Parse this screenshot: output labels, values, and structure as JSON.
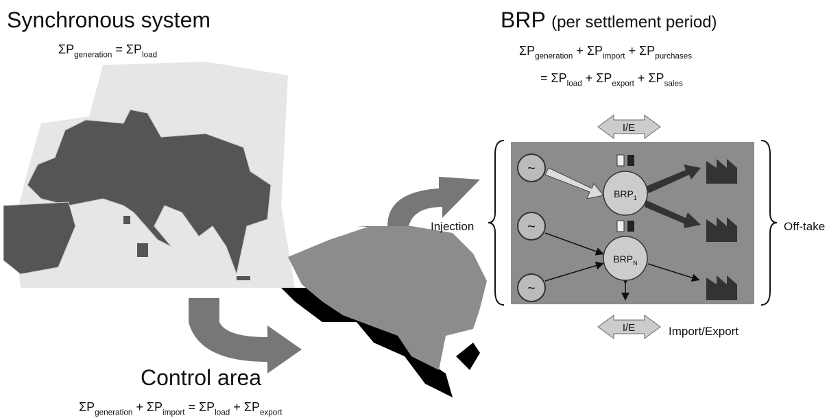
{
  "synchronous": {
    "title": "Synchronous system",
    "equation": [
      [
        "ΣP",
        "generation"
      ],
      [
        " = ΣP",
        "load"
      ]
    ]
  },
  "brp": {
    "title": "BRP",
    "subtitle": "(per settlement period)",
    "equation_line1": [
      [
        "ΣP",
        "generation"
      ],
      [
        " + ΣP",
        "import"
      ],
      [
        " + ΣP",
        "purchases"
      ]
    ],
    "equation_line2": [
      [
        "= ΣP",
        "load"
      ],
      [
        " + ΣP",
        "export"
      ],
      [
        " + ΣP",
        "sales"
      ]
    ]
  },
  "control_area": {
    "title": "Control area",
    "equation": [
      [
        "ΣP",
        "generation"
      ],
      [
        " + ΣP",
        "import"
      ],
      [
        " = ΣP",
        "load"
      ],
      [
        " + ΣP",
        "export"
      ]
    ]
  },
  "diagram": {
    "injection": "Injection",
    "offtake": "Off-take",
    "ie_top": "I/E",
    "ie_bottom": "I/E",
    "import_export": "Import/Export",
    "brp1": [
      [
        "BRP",
        "1"
      ]
    ],
    "brpN": [
      [
        "BRP",
        "N"
      ]
    ],
    "generators": [
      "~",
      "~",
      "~"
    ]
  }
}
